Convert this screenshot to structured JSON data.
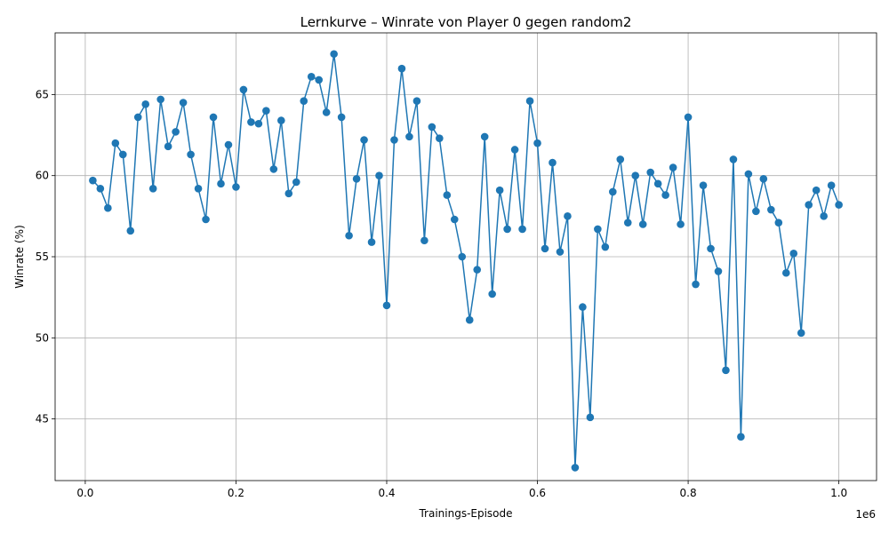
{
  "chart_data": {
    "type": "line",
    "title": "Lernkurve – Winrate von Player 0 gegen random2",
    "xlabel": "Trainings-Episode",
    "ylabel": "Winrate (%)",
    "x_offset_label": "1e6",
    "x_scale": 1000000,
    "xlim": [
      -40000,
      1050000
    ],
    "ylim": [
      41.2,
      68.8
    ],
    "xticks": [
      0,
      200000,
      400000,
      600000,
      800000,
      1000000
    ],
    "xtick_labels": [
      "0.0",
      "0.2",
      "0.4",
      "0.6",
      "0.8",
      "1.0"
    ],
    "yticks": [
      45,
      50,
      55,
      60,
      65
    ],
    "ytick_labels": [
      "45",
      "50",
      "55",
      "60",
      "65"
    ],
    "grid": true,
    "color": "#1f77b4",
    "series": [
      {
        "name": "Winrate",
        "x": [
          10000,
          20000,
          30000,
          40000,
          50000,
          60000,
          70000,
          80000,
          90000,
          100000,
          110000,
          120000,
          130000,
          140000,
          150000,
          160000,
          170000,
          180000,
          190000,
          200000,
          210000,
          220000,
          230000,
          240000,
          250000,
          260000,
          270000,
          280000,
          290000,
          300000,
          310000,
          320000,
          330000,
          340000,
          350000,
          360000,
          370000,
          380000,
          390000,
          400000,
          410000,
          420000,
          430000,
          440000,
          450000,
          460000,
          470000,
          480000,
          490000,
          500000,
          510000,
          520000,
          530000,
          540000,
          550000,
          560000,
          570000,
          580000,
          590000,
          600000,
          610000,
          620000,
          630000,
          640000,
          650000,
          660000,
          670000,
          680000,
          690000,
          700000,
          710000,
          720000,
          730000,
          740000,
          750000,
          760000,
          770000,
          780000,
          790000,
          800000,
          810000,
          820000,
          830000,
          840000,
          850000,
          860000,
          870000,
          880000,
          890000,
          900000,
          910000,
          920000,
          930000,
          940000,
          950000,
          960000,
          970000,
          980000,
          990000,
          1000000
        ],
        "values": [
          59.7,
          59.2,
          58.0,
          62.0,
          61.3,
          56.6,
          63.6,
          64.4,
          59.2,
          64.7,
          61.8,
          62.7,
          64.5,
          61.3,
          59.2,
          57.3,
          63.6,
          59.5,
          61.9,
          59.3,
          65.3,
          63.3,
          63.2,
          64.0,
          60.4,
          63.4,
          58.9,
          59.6,
          64.6,
          66.1,
          65.9,
          63.9,
          67.5,
          63.6,
          56.3,
          59.8,
          62.2,
          55.9,
          60.0,
          52.0,
          62.2,
          66.6,
          62.4,
          64.6,
          56.0,
          63.0,
          62.3,
          58.8,
          57.3,
          55.0,
          51.1,
          54.2,
          62.4,
          52.7,
          59.1,
          56.7,
          61.6,
          56.7,
          64.6,
          62.0,
          55.5,
          60.8,
          55.3,
          57.5,
          42.0,
          51.9,
          45.1,
          56.7,
          55.6,
          59.0,
          61.0,
          57.1,
          60.0,
          57.0,
          60.2,
          59.5,
          58.8,
          60.5,
          57.0,
          63.6,
          53.3,
          59.4,
          55.5,
          54.1,
          48.0,
          61.0,
          43.9,
          60.1,
          57.8,
          59.8,
          57.9,
          57.1,
          54.0,
          55.2,
          50.3,
          58.2,
          59.1,
          57.5,
          59.4,
          58.2
        ]
      }
    ]
  }
}
